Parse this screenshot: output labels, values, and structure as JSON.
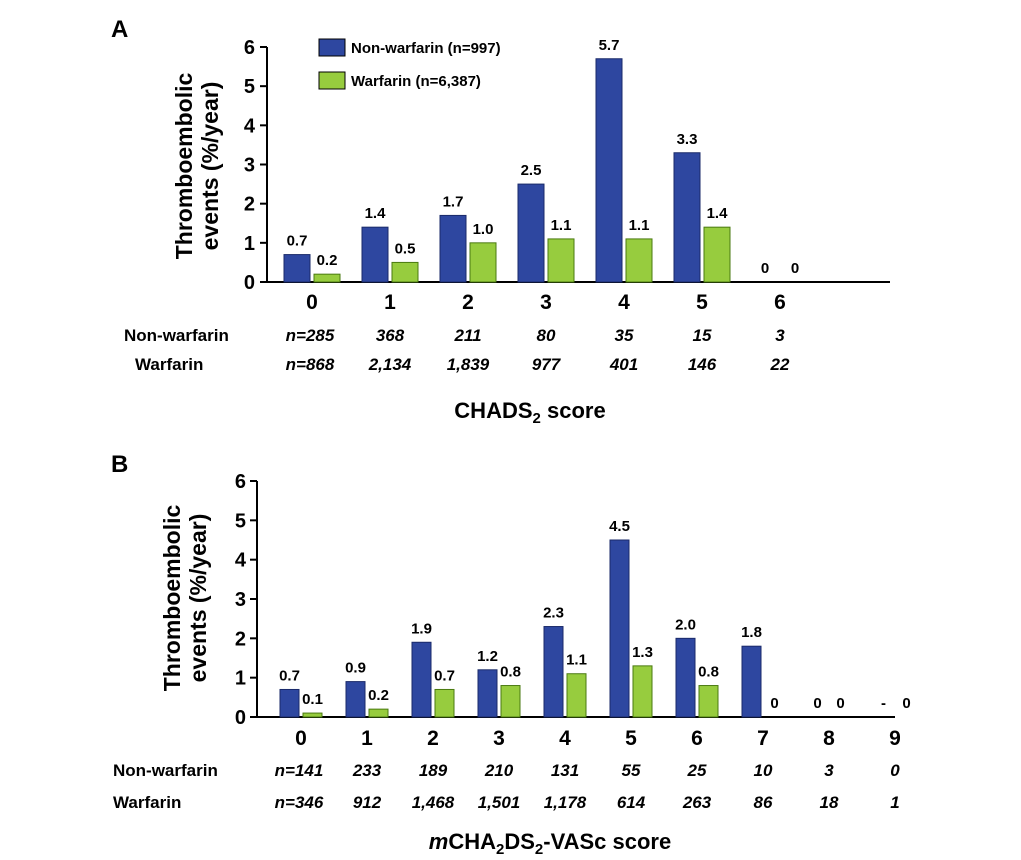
{
  "legend": {
    "non_warfarin": "Non-warfarin (n=997)",
    "warfarin": "Warfarin (n=6,387)"
  },
  "colors": {
    "non_warfarin": "#2E47A0",
    "warfarin": "#97CC3E"
  },
  "row_labels": {
    "non_warfarin": "Non-warfarin",
    "warfarin": "Warfarin"
  },
  "chart_data": [
    {
      "panel": "A",
      "type": "bar",
      "title": "",
      "ylabel_line1": "Thromboembolic",
      "ylabel_line2": "events (%/year)",
      "xlabel_main": "CHADS",
      "xlabel_sub": "2",
      "xlabel_end": " score",
      "ylim": [
        0,
        6
      ],
      "yticks": [
        "0",
        "1",
        "2",
        "3",
        "4",
        "5",
        "6"
      ],
      "categories": [
        "0",
        "1",
        "2",
        "3",
        "4",
        "5",
        "6"
      ],
      "series": [
        {
          "name": "Non-warfarin (n=997)",
          "values": [
            0.7,
            1.4,
            1.7,
            2.5,
            5.7,
            3.3,
            0
          ],
          "labels": [
            "0.7",
            "1.4",
            "1.7",
            "2.5",
            "5.7",
            "3.3",
            "0"
          ]
        },
        {
          "name": "Warfarin (n=6,387)",
          "values": [
            0.2,
            0.5,
            1.0,
            1.1,
            1.1,
            1.4,
            0
          ],
          "labels": [
            "0.2",
            "0.5",
            "1.0",
            "1.1",
            "1.1",
            "1.4",
            "0"
          ]
        }
      ],
      "n_non_warfarin": [
        "n=285",
        "368",
        "211",
        "80",
        "35",
        "15",
        "3"
      ],
      "n_warfarin": [
        "n=868",
        "2,134",
        "1,839",
        "977",
        "401",
        "146",
        "22"
      ]
    },
    {
      "panel": "B",
      "type": "bar",
      "title": "",
      "ylabel_line1": "Thromboembolic",
      "ylabel_line2": "events (%/year)",
      "xlabel_prefix": "m",
      "xlabel_main": "CHA",
      "xlabel_sub": "2",
      "xlabel_mid": "DS",
      "xlabel_sub2": "2",
      "xlabel_end": "-VASc score",
      "ylim": [
        0,
        6
      ],
      "yticks": [
        "0",
        "1",
        "2",
        "3",
        "4",
        "5",
        "6"
      ],
      "categories": [
        "0",
        "1",
        "2",
        "3",
        "4",
        "5",
        "6",
        "7",
        "8",
        "9"
      ],
      "series": [
        {
          "name": "Non-warfarin (n=997)",
          "values": [
            0.7,
            0.9,
            1.9,
            1.2,
            2.3,
            4.5,
            2.0,
            1.8,
            0,
            null
          ],
          "labels": [
            "0.7",
            "0.9",
            "1.9",
            "1.2",
            "2.3",
            "4.5",
            "2.0",
            "1.8",
            "0",
            "-"
          ]
        },
        {
          "name": "Warfarin (n=6,387)",
          "values": [
            0.1,
            0.2,
            0.7,
            0.8,
            1.1,
            1.3,
            0.8,
            0,
            0,
            0
          ],
          "labels": [
            "0.1",
            "0.2",
            "0.7",
            "0.8",
            "1.1",
            "1.3",
            "0.8",
            "0",
            "0",
            "0"
          ]
        }
      ],
      "n_non_warfarin": [
        "n=141",
        "233",
        "189",
        "210",
        "131",
        "55",
        "25",
        "10",
        "3",
        "0"
      ],
      "n_warfarin": [
        "n=346",
        "912",
        "1,468",
        "1,501",
        "1,178",
        "614",
        "263",
        "86",
        "18",
        "1"
      ]
    }
  ]
}
